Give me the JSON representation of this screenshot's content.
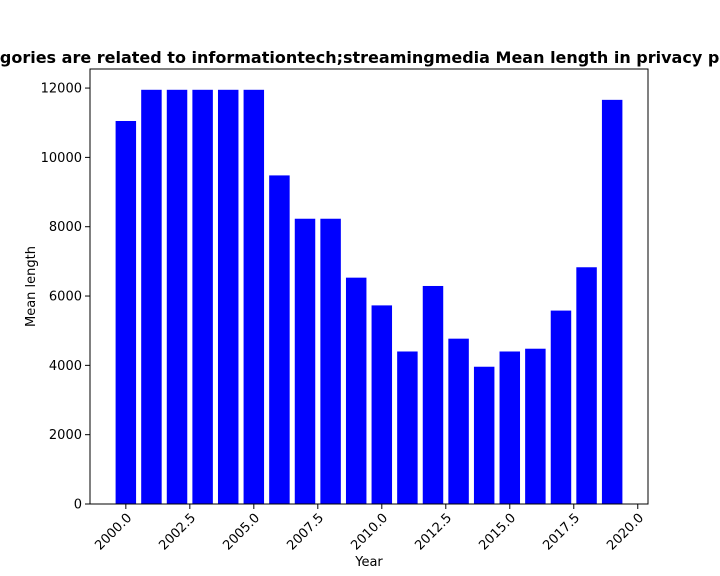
{
  "chart_data": {
    "type": "bar",
    "title": "Categories are related to informationtech;streamingmedia Mean length in privacy policy",
    "xlabel": "Year",
    "ylabel": "Mean length",
    "x": [
      2000,
      2001,
      2002,
      2003,
      2004,
      2005,
      2006,
      2007,
      2008,
      2009,
      2010,
      2011,
      2012,
      2013,
      2014,
      2015,
      2016,
      2017,
      2018,
      2019
    ],
    "values": [
      11050,
      11950,
      11950,
      11950,
      11950,
      11950,
      9480,
      8230,
      8230,
      6530,
      5730,
      4400,
      6290,
      4770,
      3960,
      4400,
      4480,
      5580,
      6830,
      11660
    ],
    "xlim": [
      1998.6,
      2020.4
    ],
    "ylim": [
      0,
      12550
    ],
    "xticks": [
      "2000.0",
      "2002.5",
      "2005.0",
      "2007.5",
      "2010.0",
      "2012.5",
      "2015.0",
      "2017.5",
      "2020.0"
    ],
    "yticks": [
      "0",
      "2000",
      "4000",
      "6000",
      "8000",
      "10000",
      "12000"
    ],
    "bar_color": "#0000ff",
    "grid": false,
    "legend": "none"
  }
}
